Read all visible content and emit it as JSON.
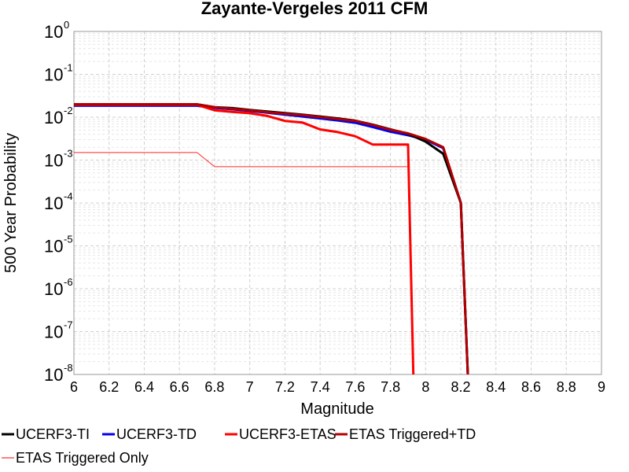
{
  "chart_data": {
    "type": "line",
    "title": "Zayante-Vergeles 2011 CFM",
    "xlabel": "Magnitude",
    "ylabel": "500 Year Probability",
    "y_scale": "log",
    "xlim": [
      6,
      9
    ],
    "ylim": [
      1e-08,
      1
    ],
    "grid": true,
    "legend_placement": "bottom",
    "x_ticks": [
      "6",
      "6.2",
      "6.4",
      "6.6",
      "6.8",
      "7",
      "7.2",
      "7.4",
      "7.6",
      "7.8",
      "8",
      "8.2",
      "8.4",
      "8.6",
      "8.8",
      "9"
    ],
    "y_ticks": [
      {
        "base": "10",
        "exp": "0",
        "value": 1
      },
      {
        "base": "10",
        "exp": "-1",
        "value": 0.1
      },
      {
        "base": "10",
        "exp": "-2",
        "value": 0.01
      },
      {
        "base": "10",
        "exp": "-3",
        "value": 0.001
      },
      {
        "base": "10",
        "exp": "-4",
        "value": 0.0001
      },
      {
        "base": "10",
        "exp": "-5",
        "value": 1e-05
      },
      {
        "base": "10",
        "exp": "-6",
        "value": 1e-06
      },
      {
        "base": "10",
        "exp": "-7",
        "value": 1e-07
      },
      {
        "base": "10",
        "exp": "-8",
        "value": 1e-08
      }
    ],
    "series": [
      {
        "name": "UCERF3-TI",
        "color": "#000000",
        "x": [
          6.0,
          6.1,
          6.2,
          6.3,
          6.4,
          6.5,
          6.6,
          6.7,
          6.8,
          6.9,
          7.0,
          7.1,
          7.2,
          7.3,
          7.4,
          7.5,
          7.6,
          7.7,
          7.8,
          7.9,
          8.0,
          8.1,
          8.2,
          8.24
        ],
        "y": [
          0.02,
          0.02,
          0.02,
          0.02,
          0.02,
          0.02,
          0.02,
          0.02,
          0.0172,
          0.0163,
          0.0148,
          0.0136,
          0.0125,
          0.0115,
          0.0104,
          0.0094,
          0.0083,
          0.0067,
          0.0052,
          0.0041,
          0.0027,
          0.0014,
          0.0001,
          1e-08
        ]
      },
      {
        "name": "UCERF3-TD",
        "color": "#0000ee",
        "x": [
          6.0,
          6.1,
          6.2,
          6.3,
          6.4,
          6.5,
          6.6,
          6.7,
          6.8,
          6.9,
          7.0,
          7.1,
          7.2,
          7.3,
          7.4,
          7.5,
          7.6,
          7.7,
          7.8,
          7.9,
          8.0,
          8.1,
          8.2,
          8.24
        ],
        "y": [
          0.0185,
          0.0185,
          0.0185,
          0.0185,
          0.0185,
          0.0185,
          0.0185,
          0.0185,
          0.0165,
          0.0153,
          0.014,
          0.0127,
          0.0115,
          0.0104,
          0.0094,
          0.0084,
          0.0074,
          0.0059,
          0.0046,
          0.0038,
          0.003,
          0.0019,
          0.0001,
          1e-08
        ]
      },
      {
        "name": "UCERF3-ETAS",
        "color": "#ff0000",
        "x": [
          6.0,
          6.1,
          6.2,
          6.3,
          6.4,
          6.5,
          6.6,
          6.7,
          6.8,
          6.9,
          7.0,
          7.1,
          7.2,
          7.3,
          7.4,
          7.5,
          7.6,
          7.7,
          7.8,
          7.9,
          7.93
        ],
        "y": [
          0.0195,
          0.0195,
          0.0195,
          0.0195,
          0.0195,
          0.0195,
          0.0195,
          0.0195,
          0.0145,
          0.0133,
          0.0124,
          0.0107,
          0.0082,
          0.0075,
          0.0052,
          0.0045,
          0.0036,
          0.0023,
          0.0023,
          0.0023,
          1e-08
        ]
      },
      {
        "name": "ETAS Triggered+TD",
        "color": "#b00000",
        "x": [
          6.0,
          6.1,
          6.2,
          6.3,
          6.4,
          6.5,
          6.6,
          6.7,
          6.8,
          6.9,
          7.0,
          7.1,
          7.2,
          7.3,
          7.4,
          7.5,
          7.6,
          7.7,
          7.8,
          7.9,
          8.0,
          8.1,
          8.2,
          8.24
        ],
        "y": [
          0.02,
          0.02,
          0.02,
          0.02,
          0.02,
          0.02,
          0.02,
          0.02,
          0.017,
          0.0158,
          0.0145,
          0.0131,
          0.0121,
          0.0112,
          0.0101,
          0.0091,
          0.0082,
          0.0066,
          0.0051,
          0.0042,
          0.0031,
          0.002,
          0.0001,
          1e-08
        ]
      },
      {
        "name": "ETAS Triggered Only",
        "color": "#ff0000",
        "x": [
          6.0,
          6.1,
          6.2,
          6.3,
          6.4,
          6.5,
          6.6,
          6.7,
          6.8,
          6.9,
          7.0,
          7.1,
          7.2,
          7.3,
          7.4,
          7.5,
          7.6,
          7.7,
          7.8,
          7.9
        ],
        "y": [
          0.0015,
          0.0015,
          0.0015,
          0.0015,
          0.0015,
          0.0015,
          0.0015,
          0.0015,
          0.0007,
          0.0007,
          0.0007,
          0.0007,
          0.0007,
          0.0007,
          0.0007,
          0.0007,
          0.0007,
          0.0007,
          0.0007,
          0.0007
        ]
      }
    ]
  }
}
